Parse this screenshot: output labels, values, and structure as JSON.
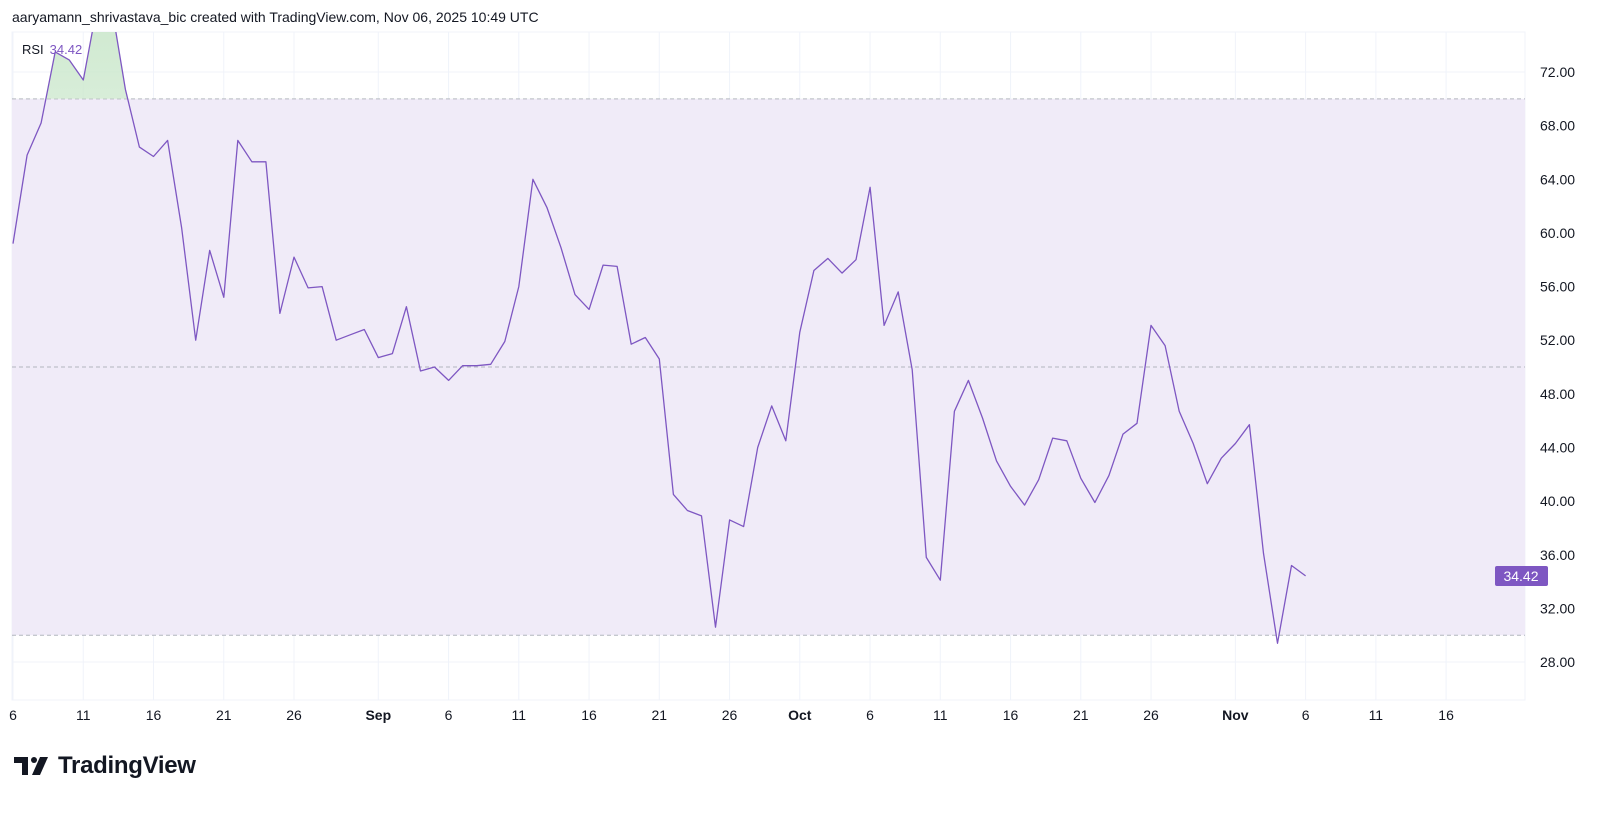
{
  "header": {
    "attribution": "aaryamann_shrivastava_bic created with TradingView.com, Nov 06, 2025 10:49 UTC"
  },
  "legend": {
    "label": "RSI",
    "value": "34.42"
  },
  "logo": {
    "text": "TradingView"
  },
  "colors": {
    "line": "#7e57c2",
    "band": "#f0ebf8",
    "overbought_fill": "#d8efd9",
    "label_bg": "#7e57c2"
  },
  "chart_data": {
    "type": "line",
    "title": "RSI",
    "ylim": [
      26,
      75
    ],
    "y_ticks": [
      "72.00",
      "68.00",
      "64.00",
      "60.00",
      "56.00",
      "52.00",
      "48.00",
      "44.00",
      "40.00",
      "36.00",
      "32.00",
      "28.00"
    ],
    "x_ticks": [
      {
        "label": "6",
        "day": 0,
        "bold": false
      },
      {
        "label": "11",
        "day": 5,
        "bold": false
      },
      {
        "label": "16",
        "day": 10,
        "bold": false
      },
      {
        "label": "21",
        "day": 15,
        "bold": false
      },
      {
        "label": "26",
        "day": 20,
        "bold": false
      },
      {
        "label": "Sep",
        "day": 26,
        "bold": true
      },
      {
        "label": "6",
        "day": 31,
        "bold": false
      },
      {
        "label": "11",
        "day": 36,
        "bold": false
      },
      {
        "label": "16",
        "day": 41,
        "bold": false
      },
      {
        "label": "21",
        "day": 46,
        "bold": false
      },
      {
        "label": "26",
        "day": 51,
        "bold": false
      },
      {
        "label": "Oct",
        "day": 56,
        "bold": true
      },
      {
        "label": "6",
        "day": 61,
        "bold": false
      },
      {
        "label": "11",
        "day": 66,
        "bold": false
      },
      {
        "label": "16",
        "day": 71,
        "bold": false
      },
      {
        "label": "21",
        "day": 76,
        "bold": false
      },
      {
        "label": "26",
        "day": 81,
        "bold": false
      },
      {
        "label": "Nov",
        "day": 87,
        "bold": true
      },
      {
        "label": "6",
        "day": 92,
        "bold": false
      },
      {
        "label": "11",
        "day": 97,
        "bold": false
      },
      {
        "label": "16",
        "day": 102,
        "bold": false
      }
    ],
    "bands": {
      "upper": 70,
      "middle": 50,
      "lower": 30
    },
    "last_value_label": "34.42",
    "series": [
      {
        "start": "Aug 6",
        "values": [
          59.2,
          65.8,
          68.2,
          73.5,
          72.9,
          71.4,
          77,
          77,
          70.7,
          66.4,
          65.7,
          66.9,
          60.4,
          52.0,
          58.7,
          55.2,
          66.9,
          65.3,
          65.3,
          54.0,
          58.2,
          55.9,
          56.0,
          52.0,
          52.4,
          52.8,
          50.7,
          51.0,
          54.5,
          49.7,
          50.0,
          49.0,
          50.1,
          50.1,
          50.2,
          51.9,
          56.0,
          64.0,
          61.9,
          58.9,
          55.4,
          54.3,
          57.6,
          57.5,
          51.7,
          52.2,
          50.6,
          40.5,
          39.3,
          38.9,
          30.6,
          38.6,
          38.1,
          44.0,
          47.1,
          44.5,
          52.6,
          57.2,
          58.1,
          57.0,
          58.0,
          63.4,
          53.1,
          55.6,
          49.8,
          35.8,
          34.1,
          46.7,
          49.0,
          46.2,
          43.0,
          41.1,
          39.7,
          41.6,
          44.7,
          44.5,
          41.7,
          39.9,
          41.9,
          45.0,
          45.8,
          53.1,
          51.6,
          46.7,
          44.3,
          41.3,
          43.2,
          44.3,
          45.7,
          36.1,
          29.4,
          35.2,
          34.42
        ]
      }
    ]
  }
}
